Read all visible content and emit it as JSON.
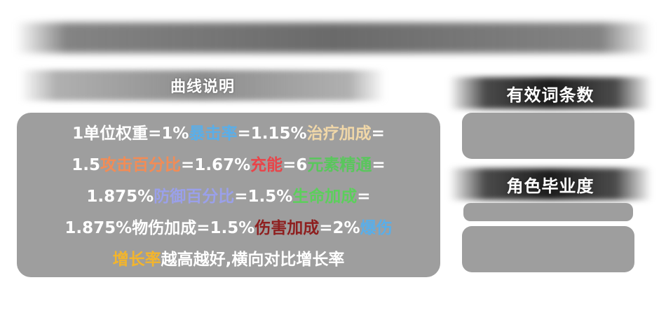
{
  "colors": {
    "white": "#ffffff",
    "crit": "#5aaee8",
    "heal": "#f0d7a8",
    "atk": "#f28c56",
    "recharge": "#e8454a",
    "em": "#59c75c",
    "def": "#9aa0ea",
    "hp": "#5ccf5c",
    "dmg": "#8e1f1f",
    "crit_dmg": "#5aaee8",
    "crit_dmg_tail": "#f3b52c"
  },
  "headers": {
    "explain_title": "曲线说明",
    "effective_count_title": "有效词条数",
    "graduation_title": "角色毕业度"
  },
  "explain": {
    "lines": [
      [
        {
          "text": "1单位权重=1%",
          "color": "white"
        },
        {
          "text": "暴击率",
          "color": "crit"
        },
        {
          "text": "=1.15%",
          "color": "white"
        },
        {
          "text": "治疗加成",
          "color": "heal"
        },
        {
          "text": "=",
          "color": "white"
        }
      ],
      [
        {
          "text": "1.5",
          "color": "white"
        },
        {
          "text": "攻击百分比",
          "color": "atk"
        },
        {
          "text": "=1.67%",
          "color": "white"
        },
        {
          "text": "充能",
          "color": "recharge"
        },
        {
          "text": "=6",
          "color": "white"
        },
        {
          "text": "元素精通",
          "color": "em"
        },
        {
          "text": "=",
          "color": "white"
        }
      ],
      [
        {
          "text": "1.875%",
          "color": "white"
        },
        {
          "text": "防御百分比",
          "color": "def"
        },
        {
          "text": "=1.5%",
          "color": "white"
        },
        {
          "text": "生命加成",
          "color": "hp"
        },
        {
          "text": "=",
          "color": "white"
        }
      ],
      [
        {
          "text": "1.875%物伤加成=1.5%",
          "color": "white"
        },
        {
          "text": "伤害加成",
          "color": "dmg"
        },
        {
          "text": "=2%",
          "color": "white"
        },
        {
          "text": "爆伤",
          "color": "crit_dmg"
        }
      ],
      [
        {
          "text": "增长率",
          "color": "crit_dmg_tail"
        },
        {
          "text": "越高越好,横向对比增长率",
          "color": "white"
        }
      ]
    ]
  }
}
